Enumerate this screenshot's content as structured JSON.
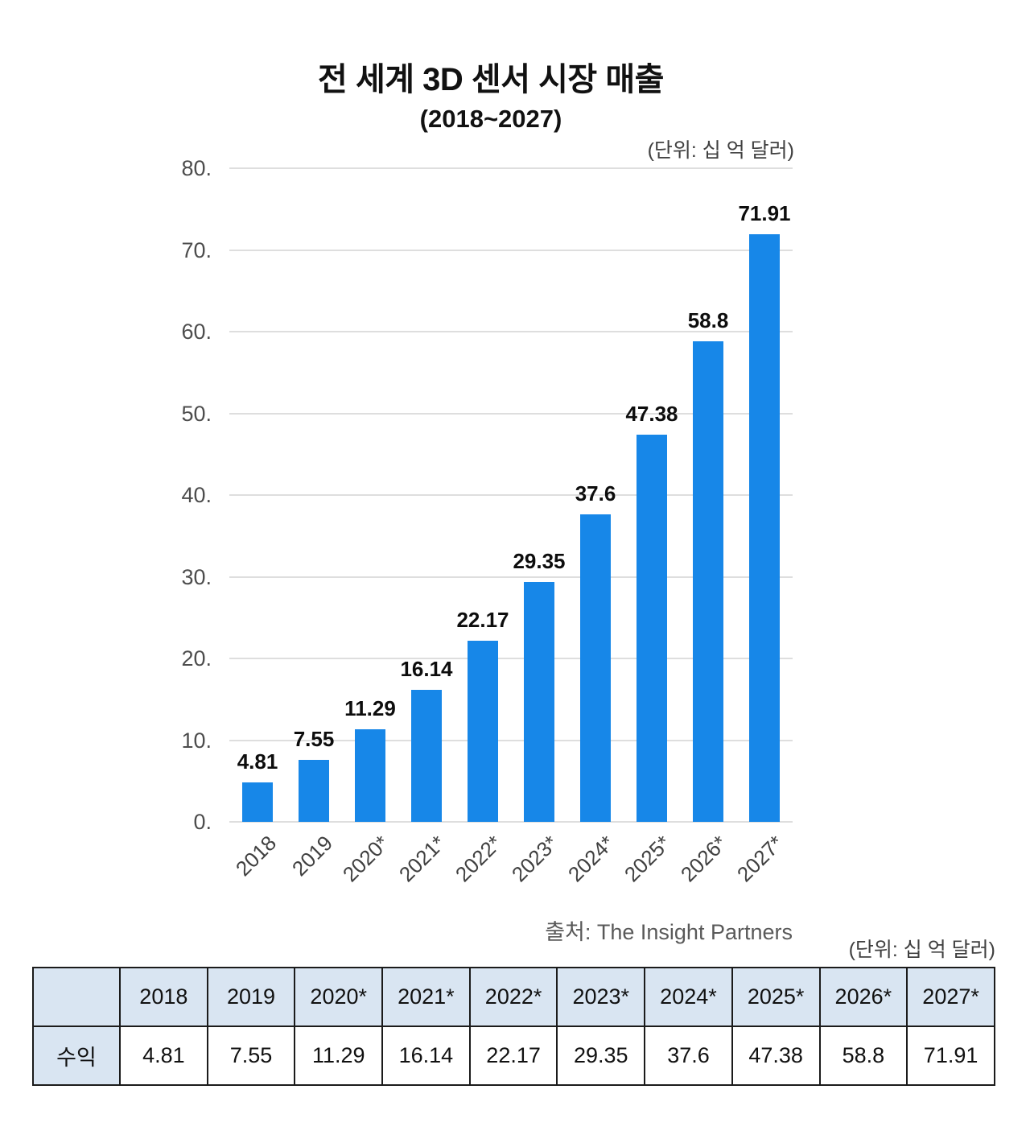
{
  "chart_data": {
    "type": "bar",
    "title": "전 세계 3D 센서 시장 매출",
    "subtitle": "(2018~2027)",
    "unit_label": "(단위: 십 억 달러)",
    "source": "출처: The Insight Partners",
    "categories": [
      "2018",
      "2019",
      "2020*",
      "2021*",
      "2022*",
      "2023*",
      "2024*",
      "2025*",
      "2026*",
      "2027*"
    ],
    "values": [
      4.81,
      7.55,
      11.29,
      16.14,
      22.17,
      29.35,
      37.6,
      47.38,
      58.8,
      71.91
    ],
    "value_labels": [
      "4.81",
      "7.55",
      "11.29",
      "16.14",
      "22.17",
      "29.35",
      "37.6",
      "47.38",
      "58.8",
      "71.91"
    ],
    "xlabel": "",
    "ylabel": "",
    "ylim": [
      0,
      80
    ],
    "ytick_step": 10,
    "ytick_labels": [
      "80.",
      "70.",
      "60.",
      "50.",
      "40.",
      "30.",
      "20.",
      "10.",
      "0."
    ],
    "grid": "horizontal",
    "legend": "none",
    "bar_color": "#1787e8"
  },
  "table": {
    "unit_label": "(단위: 십 억 달러)",
    "row_header": "수익",
    "columns": [
      "2018",
      "2019",
      "2020*",
      "2021*",
      "2022*",
      "2023*",
      "2024*",
      "2025*",
      "2026*",
      "2027*"
    ],
    "values": [
      "4.81",
      "7.55",
      "11.29",
      "16.14",
      "22.17",
      "29.35",
      "37.6",
      "47.38",
      "58.8",
      "71.91"
    ],
    "header_bg": "#d9e5f2",
    "border_color": "#1b1b1b"
  }
}
